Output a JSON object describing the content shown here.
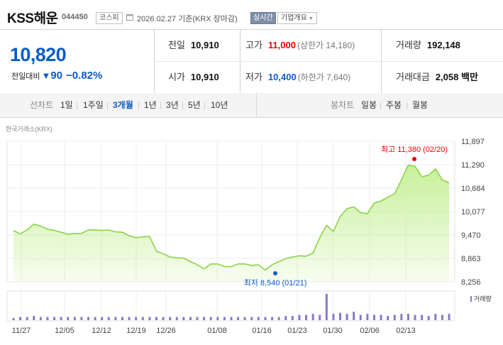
{
  "header": {
    "name": "KSS해운",
    "code": "044450",
    "market": "코스피",
    "date": "2026.02.27 기준(KRX 장마감)",
    "realtime_btn": "실시간",
    "company_info_btn": "기업개요"
  },
  "price": {
    "current": "10,820",
    "change_label": "전일대비",
    "change_value": "90",
    "change_pct": "−0.82%",
    "color": "#0b5cc7"
  },
  "stats": {
    "prev_close": {
      "label": "전일",
      "value": "10,910"
    },
    "open": {
      "label": "시가",
      "value": "10,910"
    },
    "high": {
      "label": "고가",
      "value": "11,000",
      "extra": "(상한가 14,180)"
    },
    "low": {
      "label": "저가",
      "value": "10,400",
      "extra": "(하한가 7,640)"
    },
    "volume": {
      "label": "거래량",
      "value": "192,148"
    },
    "amount": {
      "label": "거래대금",
      "value": "2,058 백만"
    }
  },
  "tabs": {
    "line_label": "선차트",
    "periods": [
      "1일",
      "1주일",
      "3개월",
      "1년",
      "3년",
      "5년",
      "10년"
    ],
    "selected": "3개월",
    "candle_label": "봉차트",
    "candles": [
      "일봉",
      "주봉",
      "월봉"
    ]
  },
  "chart_source": "한국거래소(KRX)",
  "chart_data": {
    "type": "area",
    "x_labels": [
      "11/27",
      "12/05",
      "12/12",
      "12/19",
      "12/26",
      "01/08",
      "01/16",
      "01/23",
      "01/30",
      "02/06",
      "02/13"
    ],
    "y_ticks": [
      "11,897",
      "11,290",
      "10,684",
      "10,077",
      "9,470",
      "8,863",
      "8,256"
    ],
    "ylim": [
      8256,
      11897
    ],
    "values": [
      9580,
      9500,
      9600,
      9750,
      9700,
      9620,
      9590,
      9540,
      9490,
      9510,
      9510,
      9600,
      9600,
      9590,
      9600,
      9550,
      9540,
      9450,
      9400,
      9420,
      9430,
      9050,
      8980,
      8900,
      8880,
      8870,
      8780,
      8700,
      8590,
      8720,
      8720,
      8650,
      8650,
      8720,
      8720,
      8680,
      8700,
      8560,
      8700,
      8780,
      8860,
      8900,
      8930,
      8920,
      9000,
      9400,
      9720,
      9560,
      9950,
      10150,
      10200,
      10050,
      10020,
      10300,
      10350,
      10450,
      10540,
      10900,
      11280,
      11250,
      10980,
      11020,
      11180,
      10900,
      10820
    ],
    "volume": [
      2,
      3,
      3,
      4,
      3,
      3,
      3,
      3,
      3,
      3,
      3,
      3,
      3,
      3,
      3,
      3,
      3,
      3,
      3,
      3,
      3,
      3,
      3,
      3,
      3,
      3,
      3,
      3,
      3,
      3,
      3,
      3,
      3,
      3,
      3,
      3,
      3,
      3,
      3,
      3,
      4,
      4,
      5,
      5,
      6,
      5,
      25,
      6,
      7,
      6,
      8,
      5,
      6,
      5,
      5,
      4,
      5,
      6,
      6,
      5,
      5,
      4,
      6,
      5,
      6
    ],
    "high_label": "최고 11,380 (02/20)",
    "low_label": "최저 8,540 (01/21)",
    "volume_label": "거래량",
    "line_color": "#8bd24a",
    "fill_color": "#c8f09a",
    "volume_color": "#8a78c8"
  }
}
